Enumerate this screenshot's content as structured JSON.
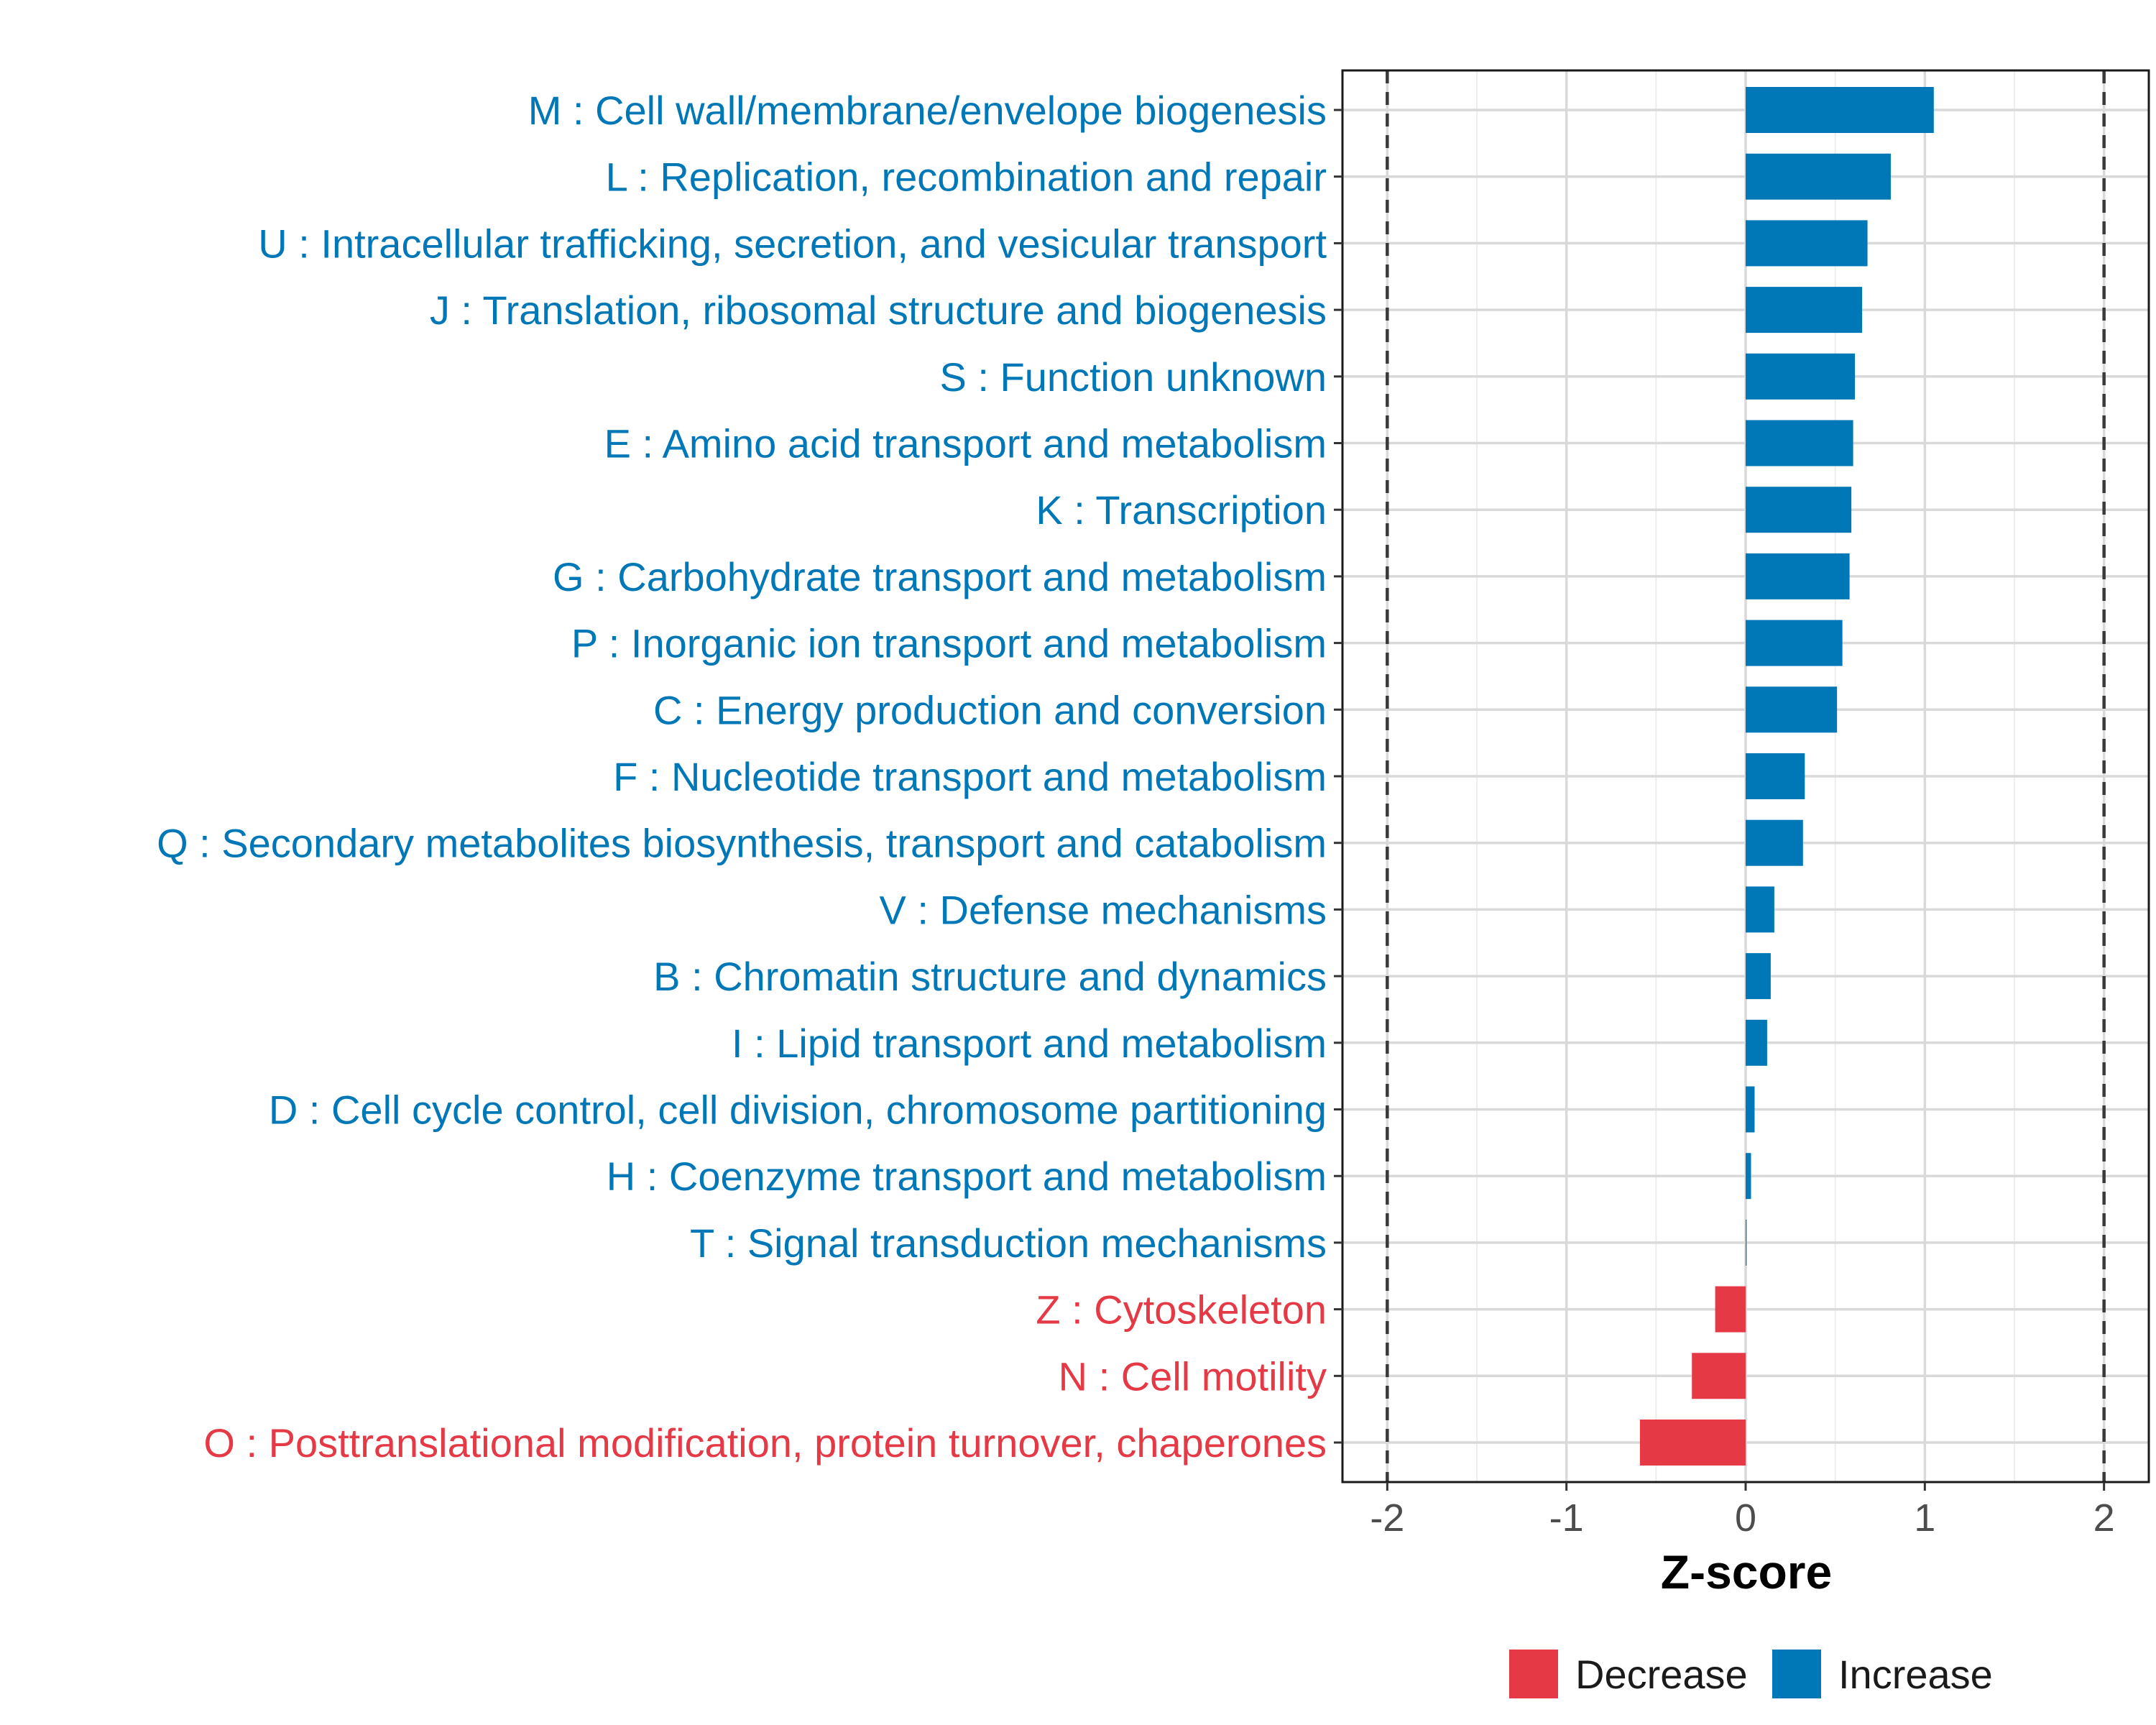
{
  "chart_data": {
    "type": "bar",
    "orientation": "horizontal",
    "xlabel": "Z-score",
    "xlim": [
      -2.25,
      2.25
    ],
    "xticks": [
      -2,
      -1,
      0,
      1,
      2
    ],
    "xtick_labels": [
      "-2",
      "-1",
      "0",
      "1",
      "2"
    ],
    "reference_lines": [
      -2,
      2
    ],
    "grid": true,
    "colors": {
      "Decrease": "#e63946",
      "Increase": "#0077b6"
    },
    "legend": {
      "placement": "bottom",
      "entries": [
        {
          "label": "Decrease",
          "color": "#e63946"
        },
        {
          "label": "Increase",
          "color": "#0077b6"
        }
      ]
    },
    "categories": [
      "M : Cell wall/membrane/envelope biogenesis",
      "L : Replication, recombination and repair",
      "U : Intracellular trafficking, secretion, and vesicular transport",
      "J : Translation, ribosomal structure and biogenesis",
      "S : Function unknown",
      "E : Amino acid transport and metabolism",
      "K : Transcription",
      "G : Carbohydrate transport and metabolism",
      "P : Inorganic ion transport and metabolism",
      "C : Energy production and conversion",
      "F : Nucleotide transport and metabolism",
      "Q : Secondary metabolites biosynthesis, transport and catabolism",
      "V : Defense mechanisms",
      "B : Chromatin structure and dynamics",
      "I : Lipid transport and metabolism",
      "D : Cell cycle control, cell division, chromosome partitioning",
      "H : Coenzyme transport and metabolism",
      "T : Signal transduction mechanisms",
      "Z : Cytoskeleton",
      "N : Cell motility",
      "O : Posttranslational modification, protein turnover, chaperones"
    ],
    "values": [
      1.05,
      0.81,
      0.68,
      0.65,
      0.61,
      0.6,
      0.59,
      0.58,
      0.54,
      0.51,
      0.33,
      0.32,
      0.16,
      0.14,
      0.12,
      0.05,
      0.03,
      0.005,
      -0.17,
      -0.3,
      -0.59
    ],
    "groups": [
      "Increase",
      "Increase",
      "Increase",
      "Increase",
      "Increase",
      "Increase",
      "Increase",
      "Increase",
      "Increase",
      "Increase",
      "Increase",
      "Increase",
      "Increase",
      "Increase",
      "Increase",
      "Increase",
      "Increase",
      "Increase",
      "Decrease",
      "Decrease",
      "Decrease"
    ]
  }
}
